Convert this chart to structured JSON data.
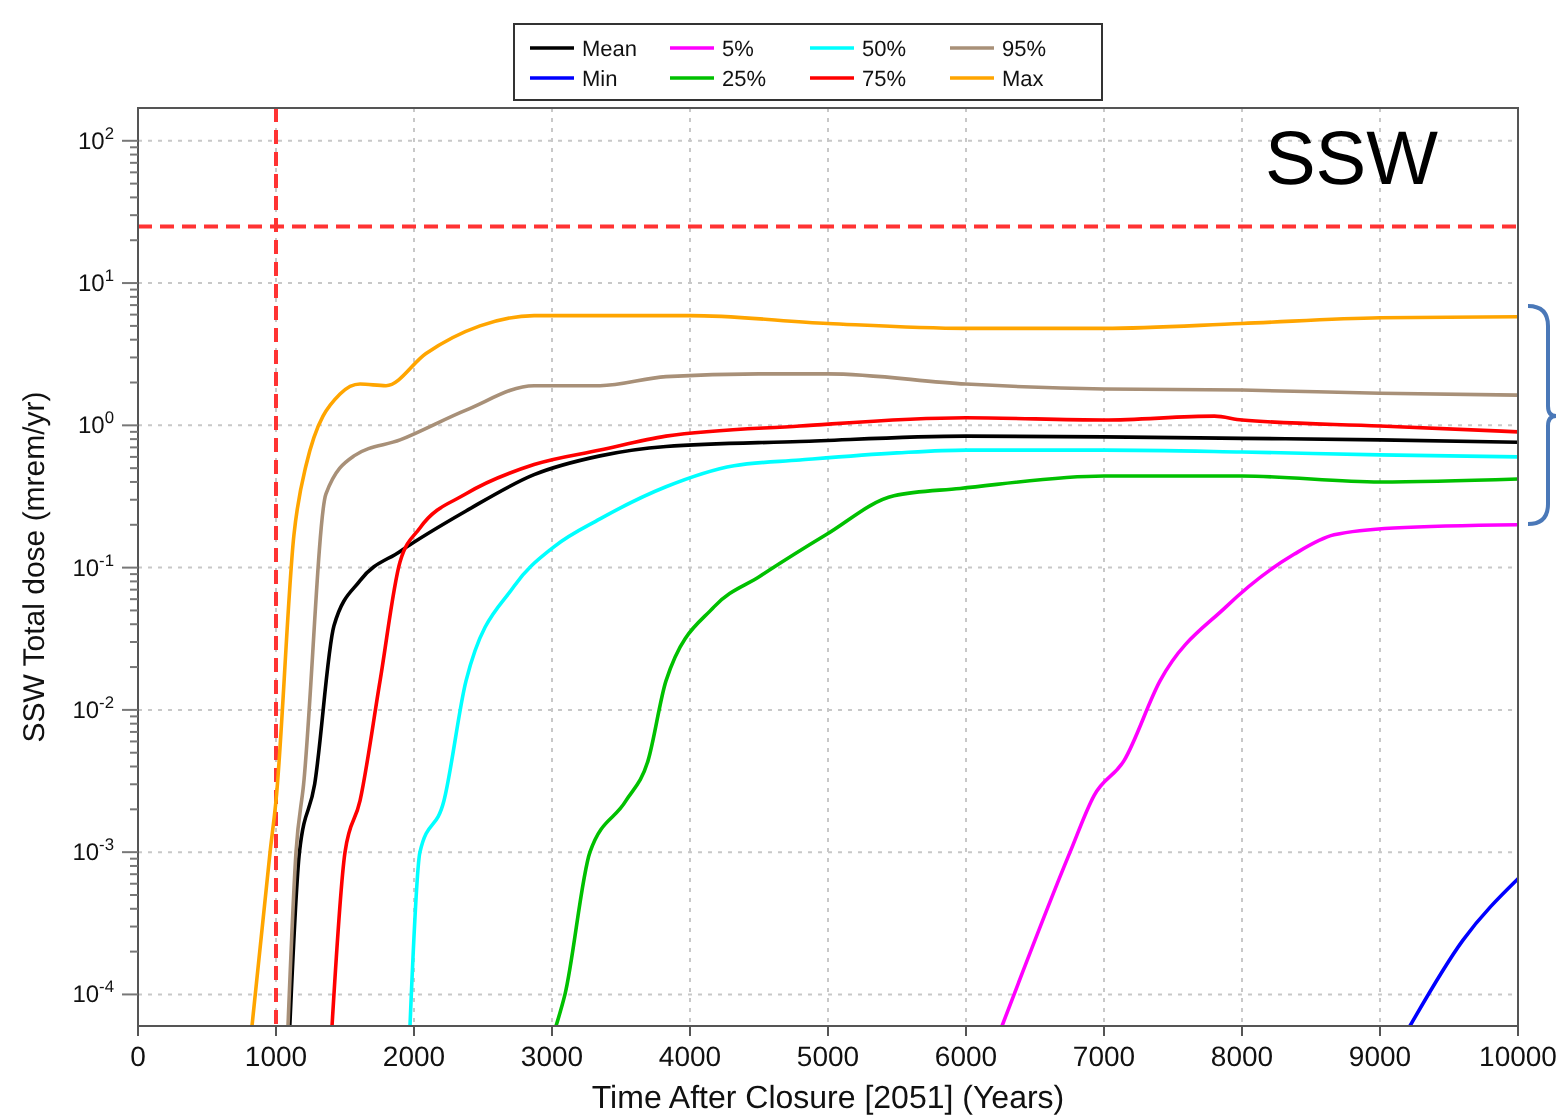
{
  "chart_data": {
    "type": "line",
    "xlabel": "Time After Closure [2051] (Years)",
    "ylabel": "SSW Total dose (mrem/yr)",
    "annotations": [
      "SSW"
    ],
    "log": "y",
    "grid": true,
    "legend": "top",
    "line_style": "solid",
    "marker": "none",
    "xlim": [
      0,
      10000
    ],
    "xticks": [
      0,
      1000,
      2000,
      3000,
      4000,
      5000,
      6000,
      7000,
      8000,
      9000,
      10000
    ],
    "ylim": [
      6e-05,
      170
    ],
    "yticks": [
      {
        "value": 0.0001,
        "label": "10$^{-4}$"
      },
      {
        "value": 0.0002,
        "label": null
      },
      {
        "value": 0.0003,
        "label": null
      },
      {
        "value": 0.0004,
        "label": null
      },
      {
        "value": 0.0005,
        "label": null
      },
      {
        "value": 0.0006,
        "label": null
      },
      {
        "value": 0.0007,
        "label": null
      },
      {
        "value": 0.0008,
        "label": null
      },
      {
        "value": 0.0009,
        "label": null
      },
      {
        "value": 0.001,
        "label": "10$^{-3}$"
      },
      {
        "value": 0.002,
        "label": null
      },
      {
        "value": 0.003,
        "label": null
      },
      {
        "value": 0.004,
        "label": null
      },
      {
        "value": 0.005,
        "label": null
      },
      {
        "value": 0.006,
        "label": null
      },
      {
        "value": 0.007,
        "label": null
      },
      {
        "value": 0.008,
        "label": null
      },
      {
        "value": 0.009,
        "label": null
      },
      {
        "value": 0.01,
        "label": "10$^{-2}$"
      },
      {
        "value": 0.02,
        "label": null
      },
      {
        "value": 0.03,
        "label": null
      },
      {
        "value": 0.04,
        "label": null
      },
      {
        "value": 0.05,
        "label": null
      },
      {
        "value": 0.06,
        "label": null
      },
      {
        "value": 0.07,
        "label": null
      },
      {
        "value": 0.08,
        "label": null
      },
      {
        "value": 0.09,
        "label": null
      },
      {
        "value": 0.1,
        "label": "10$^{-1}$"
      },
      {
        "value": 0.2,
        "label": null
      },
      {
        "value": 0.3,
        "label": null
      },
      {
        "value": 0.4,
        "label": null
      },
      {
        "value": 0.5,
        "label": null
      },
      {
        "value": 0.6,
        "label": null
      },
      {
        "value": 0.7,
        "label": null
      },
      {
        "value": 0.8,
        "label": null
      },
      {
        "value": 0.9,
        "label": null
      },
      {
        "value": 1,
        "label": "10$^{0}$"
      },
      {
        "value": 2,
        "label": null
      },
      {
        "value": 3,
        "label": null
      },
      {
        "value": 4,
        "label": null
      },
      {
        "value": 5,
        "label": null
      },
      {
        "value": 6,
        "label": null
      },
      {
        "value": 7,
        "label": null
      },
      {
        "value": 8,
        "label": null
      },
      {
        "value": 9,
        "label": null
      },
      {
        "value": 10,
        "label": "10$^{1}$"
      },
      {
        "value": 20,
        "label": null
      },
      {
        "value": 30,
        "label": null
      },
      {
        "value": 40,
        "label": null
      },
      {
        "value": 50,
        "label": null
      },
      {
        "value": 60,
        "label": null
      },
      {
        "value": 70,
        "label": null
      },
      {
        "value": 80,
        "label": null
      },
      {
        "value": 90,
        "label": null
      },
      {
        "value": 100,
        "label": "10$^{2}$"
      }
    ],
    "ref_lines": [
      {
        "axis": "y",
        "value": 25,
        "color": "#ff3333",
        "line_style": "dashed"
      },
      {
        "axis": "x",
        "value": 1000,
        "color": "#ff3333",
        "line_style": "dashed"
      }
    ],
    "series": [
      {
        "name": "Mean",
        "color": "#000000",
        "x": [
          1100,
          1170,
          1280,
          1420,
          1609,
          1899,
          2377,
          2870,
          3348,
          3826,
          4797,
          6000,
          7000,
          8000,
          9000,
          10000
        ],
        "values": [
          6e-05,
          0.001,
          0.003,
          0.039,
          0.081,
          0.13,
          0.25,
          0.45,
          0.61,
          0.71,
          0.77,
          0.84,
          0.83,
          0.81,
          0.79,
          0.76
        ]
      },
      {
        "name": "Min",
        "color": "#0000ff",
        "x": [
          9217,
          9600,
          10000
        ],
        "values": [
          6e-05,
          0.00024,
          0.00065
        ]
      },
      {
        "name": "5%",
        "color": "#ff00ff",
        "x": [
          6261,
          6754,
          6928,
          7145,
          7406,
          7884,
          8377,
          8667,
          9101,
          10000
        ],
        "values": [
          6e-05,
          0.001,
          0.0025,
          0.0044,
          0.016,
          0.053,
          0.124,
          0.17,
          0.19,
          0.2
        ]
      },
      {
        "name": "25%",
        "color": "#00c000",
        "x": [
          3029,
          3094,
          3275,
          3536,
          3696,
          3826,
          4174,
          4507,
          4985,
          5478,
          5957,
          7000,
          8000,
          9000,
          10000
        ],
        "values": [
          6e-05,
          0.0001,
          0.001,
          0.0023,
          0.0044,
          0.016,
          0.053,
          0.087,
          0.17,
          0.32,
          0.36,
          0.44,
          0.44,
          0.4,
          0.42
        ]
      },
      {
        "name": "50%",
        "color": "#00ffff",
        "x": [
          1971,
          2043,
          2217,
          2377,
          2725,
          3014,
          3348,
          3826,
          4319,
          4797,
          5500,
          6000,
          7000,
          8000,
          9000,
          10000
        ],
        "values": [
          6e-05,
          0.001,
          0.0023,
          0.016,
          0.074,
          0.14,
          0.22,
          0.37,
          0.52,
          0.57,
          0.64,
          0.67,
          0.67,
          0.65,
          0.62,
          0.6
        ]
      },
      {
        "name": "75%",
        "color": "#ff0000",
        "x": [
          1406,
          1500,
          1609,
          1754,
          1899,
          2043,
          2377,
          2870,
          3348,
          3826,
          4797,
          6000,
          7000,
          7800,
          8000,
          9000,
          10000
        ],
        "values": [
          6e-05,
          0.001,
          0.0023,
          0.016,
          0.11,
          0.19,
          0.33,
          0.53,
          0.67,
          0.84,
          0.99,
          1.13,
          1.09,
          1.16,
          1.09,
          0.99,
          0.9
        ]
      },
      {
        "name": "95%",
        "color": "#a89078",
        "x": [
          1087,
          1145,
          1200,
          1362,
          1565,
          1899,
          2377,
          2870,
          3348,
          3826,
          4500,
          5000,
          6000,
          7000,
          8000,
          9000,
          10000
        ],
        "values": [
          6e-05,
          0.001,
          0.003,
          0.33,
          0.61,
          0.79,
          1.28,
          1.9,
          1.9,
          2.2,
          2.3,
          2.3,
          1.95,
          1.8,
          1.77,
          1.68,
          1.63
        ]
      },
      {
        "name": "Max",
        "color": "#ffa500",
        "x": [
          826,
          957,
          1000,
          1130,
          1217,
          1464,
          1609,
          1797,
          2087,
          2478,
          2870,
          4000,
          5000,
          6000,
          7000,
          8000,
          9000,
          10000
        ],
        "values": [
          6e-05,
          0.001,
          0.0023,
          0.17,
          0.52,
          1.66,
          1.95,
          1.9,
          3.2,
          5.0,
          5.9,
          5.9,
          5.2,
          4.8,
          4.8,
          5.2,
          5.7,
          5.8
        ]
      }
    ]
  }
}
